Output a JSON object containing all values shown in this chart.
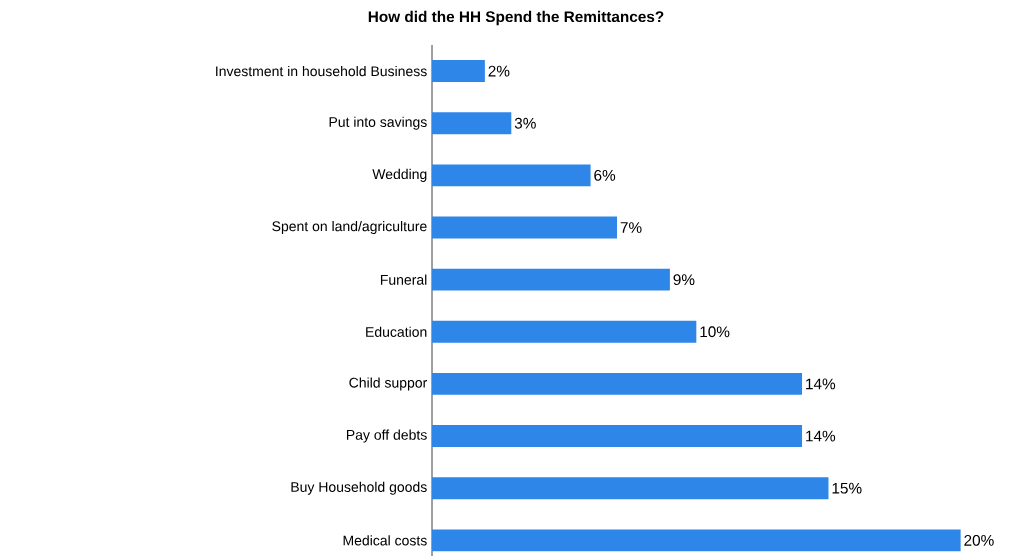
{
  "chart_data": {
    "type": "bar",
    "orientation": "horizontal",
    "title": "How did the HH Spend the Remittances?",
    "categories": [
      "Investment in household Business",
      "Put into savings",
      "Wedding",
      "Spent on land/agriculture",
      "Funeral",
      "Education",
      "Child suppor",
      "Pay off debts",
      "Buy Household goods",
      "Medical costs"
    ],
    "values": [
      2,
      3,
      6,
      7,
      9,
      10,
      14,
      14,
      15,
      20
    ],
    "value_labels": [
      "2%",
      "3%",
      "6%",
      "7%",
      "9%",
      "10%",
      "14%",
      "14%",
      "15%",
      "20%"
    ],
    "color": "#2e86e8",
    "tick_labels": "y"
  }
}
